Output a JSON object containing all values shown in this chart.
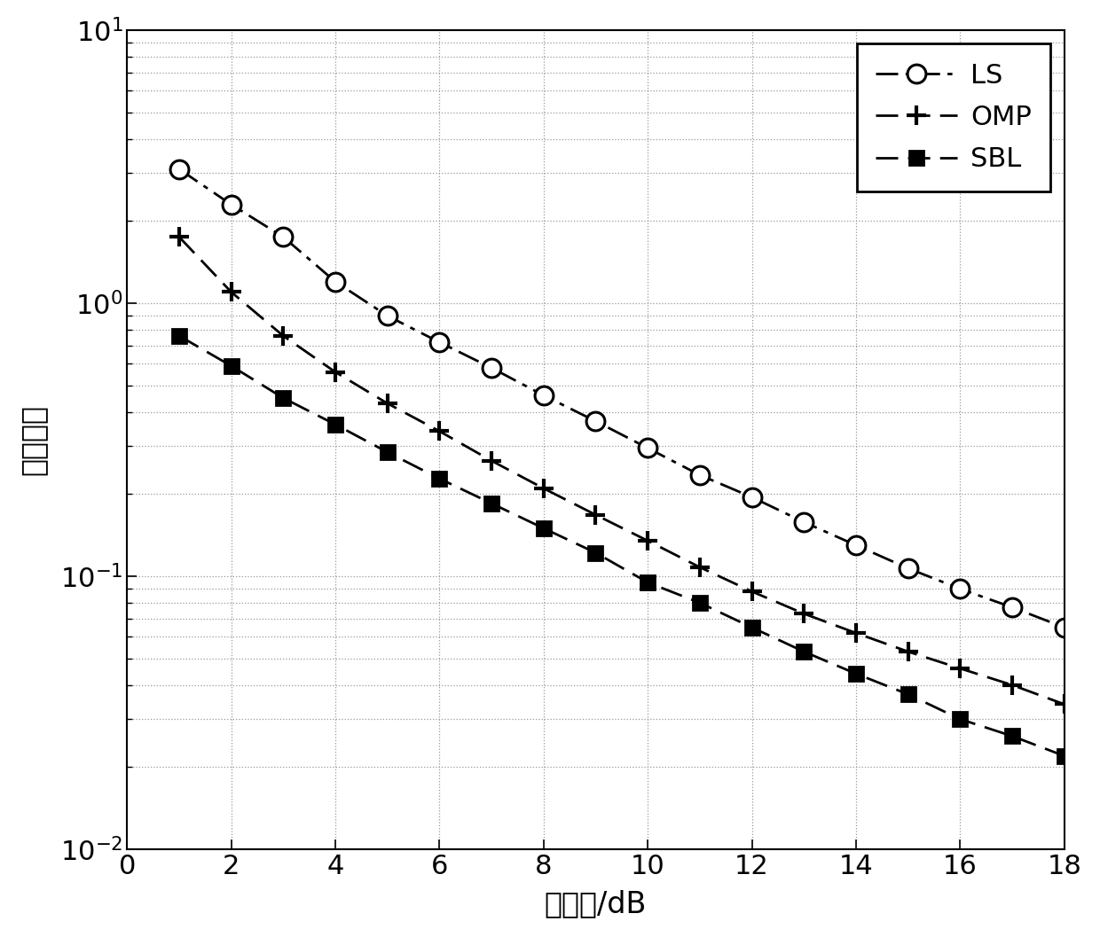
{
  "x": [
    1,
    2,
    3,
    4,
    5,
    6,
    7,
    8,
    9,
    10,
    11,
    12,
    13,
    14,
    15,
    16,
    17,
    18
  ],
  "LS": [
    3.1,
    2.3,
    1.75,
    1.2,
    0.9,
    0.72,
    0.58,
    0.46,
    0.37,
    0.295,
    0.235,
    0.195,
    0.158,
    0.13,
    0.107,
    0.09,
    0.077,
    0.065
  ],
  "OMP": [
    1.75,
    1.1,
    0.76,
    0.56,
    0.43,
    0.34,
    0.265,
    0.21,
    0.168,
    0.135,
    0.108,
    0.088,
    0.073,
    0.062,
    0.053,
    0.046,
    0.04,
    0.034
  ],
  "SBL": [
    0.76,
    0.59,
    0.45,
    0.36,
    0.285,
    0.228,
    0.185,
    0.15,
    0.122,
    0.095,
    0.08,
    0.065,
    0.053,
    0.044,
    0.037,
    0.03,
    0.026,
    0.022
  ],
  "xlabel": "信噪比/dB",
  "ylabel": "均方误差",
  "xlim": [
    0,
    18
  ],
  "ylim": [
    0.01,
    10
  ],
  "xticks": [
    0,
    2,
    4,
    6,
    8,
    10,
    12,
    14,
    16,
    18
  ],
  "background_color": "#ffffff",
  "grid_color": "#999999"
}
